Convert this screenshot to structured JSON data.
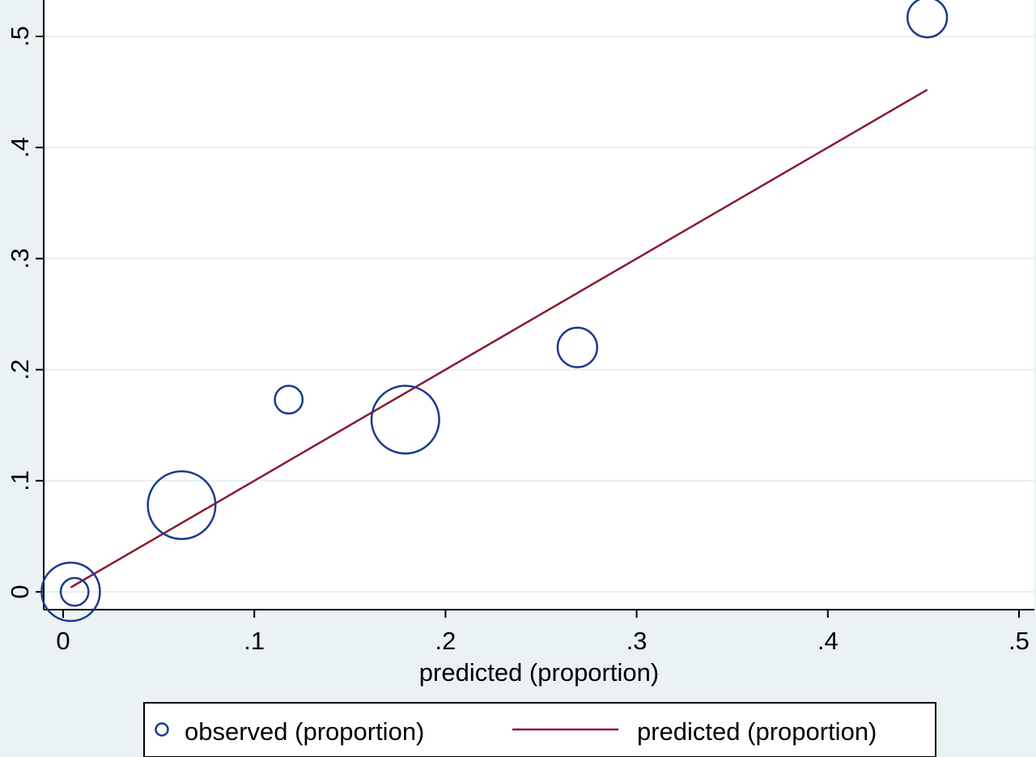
{
  "chart_data": {
    "type": "scatter",
    "xlabel": "predicted (proportion)",
    "ylabel": "",
    "xlim": [
      -0.01,
      0.51
    ],
    "ylim": [
      -0.016,
      0.52
    ],
    "x_ticks": [
      {
        "value": 0,
        "label": "0"
      },
      {
        "value": 0.1,
        "label": ".1"
      },
      {
        "value": 0.2,
        "label": ".2"
      },
      {
        "value": 0.3,
        "label": ".3"
      },
      {
        "value": 0.4,
        "label": ".4"
      },
      {
        "value": 0.5,
        "label": ".5"
      }
    ],
    "y_ticks": [
      {
        "value": 0,
        "label": "0"
      },
      {
        "value": 0.1,
        "label": ".1"
      },
      {
        "value": 0.2,
        "label": ".2"
      },
      {
        "value": 0.3,
        "label": ".3"
      },
      {
        "value": 0.4,
        "label": ".4"
      },
      {
        "value": 0.5,
        "label": ".5"
      }
    ],
    "grid": true,
    "legend_position": "bottom",
    "series": [
      {
        "name": "observed (proportion)",
        "kind": "scatter",
        "color": "#1a3a8c",
        "points": [
          {
            "x": 0.004,
            "y": 0.0,
            "weight": 1.0
          },
          {
            "x": 0.006,
            "y": 0.0,
            "weight": 0.35
          },
          {
            "x": 0.062,
            "y": 0.078,
            "weight": 1.2
          },
          {
            "x": 0.118,
            "y": 0.173,
            "weight": 0.35
          },
          {
            "x": 0.179,
            "y": 0.155,
            "weight": 1.2
          },
          {
            "x": 0.269,
            "y": 0.22,
            "weight": 0.6
          },
          {
            "x": 0.452,
            "y": 0.517,
            "weight": 0.6
          }
        ]
      },
      {
        "name": "predicted (proportion)",
        "kind": "line",
        "color": "#8b1a2f",
        "points": [
          {
            "x": 0.004,
            "y": 0.004
          },
          {
            "x": 0.452,
            "y": 0.452
          }
        ]
      }
    ]
  },
  "legend": {
    "observed_label": "observed (proportion)",
    "predicted_label": "predicted (proportion)"
  }
}
